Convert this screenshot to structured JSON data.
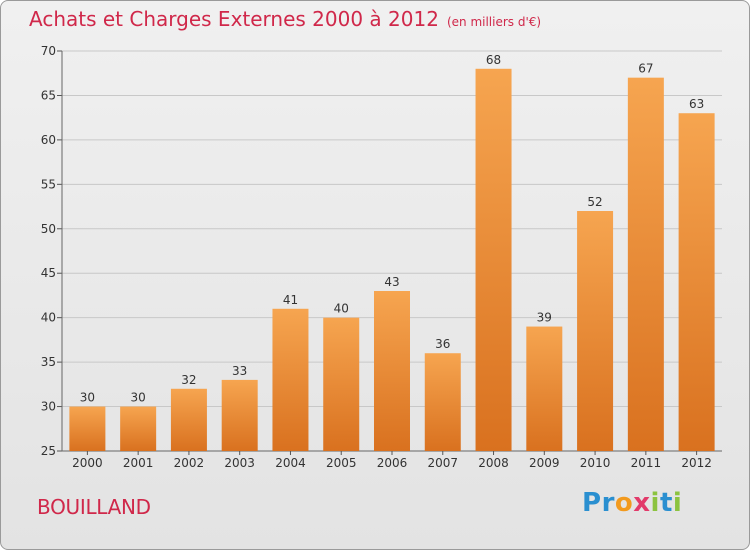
{
  "title": "Achats et Charges Externes 2000 à 2012",
  "title_unit": "(en milliers d'€)",
  "commune": "BOUILLAND",
  "logo": {
    "text": "Proxiti",
    "letters": [
      "P",
      "r",
      "o",
      "x",
      "i",
      "t",
      "i"
    ]
  },
  "colors": {
    "title": "#d0284a",
    "bar_top": "#f6a550",
    "bar_bottom": "#d9711f",
    "grid": "#c8c8c8"
  },
  "chart_data": {
    "type": "bar",
    "categories": [
      "2000",
      "2001",
      "2002",
      "2003",
      "2004",
      "2005",
      "2006",
      "2007",
      "2008",
      "2009",
      "2010",
      "2011",
      "2012"
    ],
    "values": [
      30,
      30,
      32,
      33,
      41,
      40,
      43,
      36,
      68,
      39,
      52,
      67,
      63
    ],
    "data_labels": [
      "30",
      "30",
      "32",
      "33",
      "41",
      "40",
      "43",
      "36",
      "68",
      "39",
      "52",
      "67",
      "63"
    ],
    "ylim": [
      25,
      70
    ],
    "yticks": [
      25,
      30,
      35,
      40,
      45,
      50,
      55,
      60,
      65,
      70
    ],
    "grid": true,
    "xlabel": "",
    "ylabel": ""
  }
}
